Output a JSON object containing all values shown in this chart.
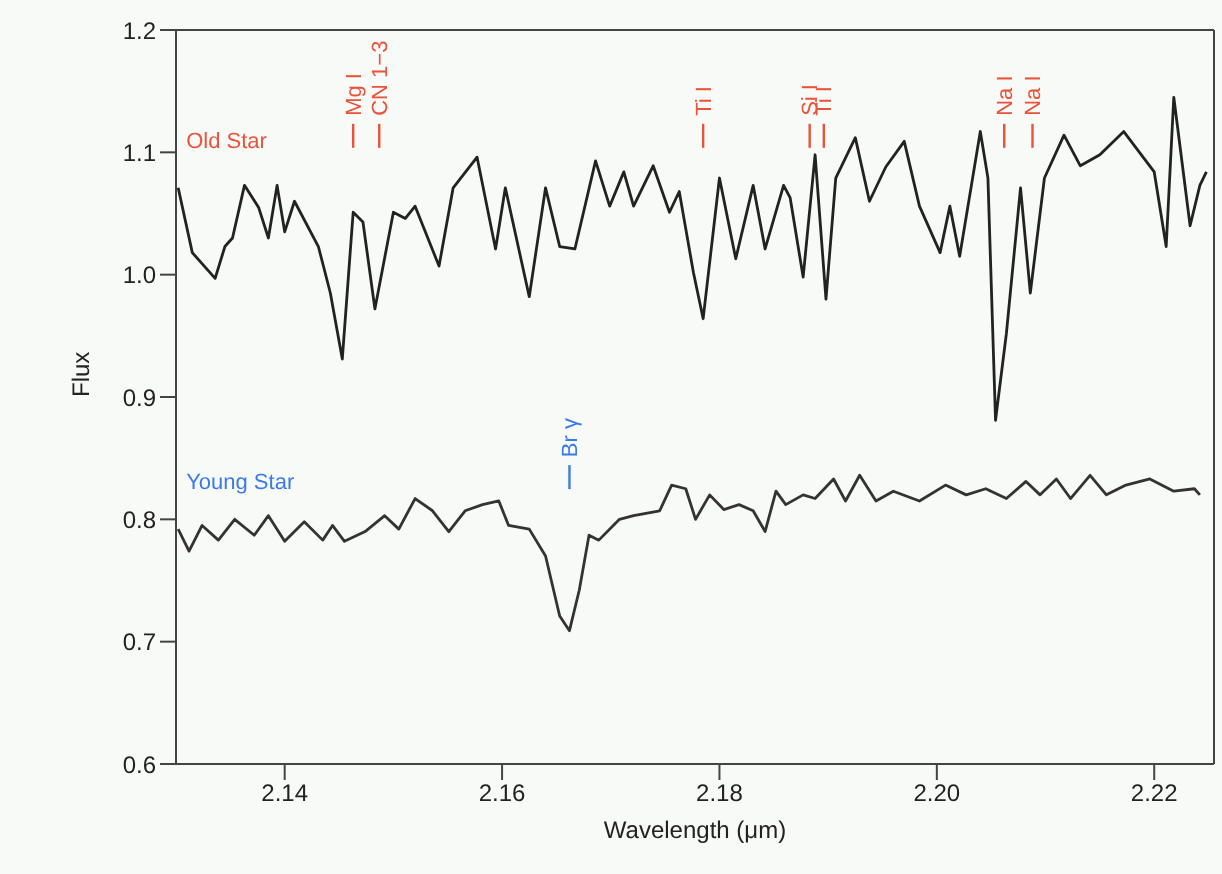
{
  "chart_data": {
    "type": "line",
    "xlabel": "Wavelength (μm)",
    "ylabel": "Flux",
    "xlim": [
      2.13,
      2.2255
    ],
    "ylim": [
      0.6,
      1.2
    ],
    "xticks": [
      2.14,
      2.16,
      2.18,
      {
        "value": 2.2,
        "label": "2.20"
      },
      2.22
    ],
    "yticks": [
      0.6,
      0.7,
      0.8,
      0.9,
      {
        "value": 1.0,
        "label": "1.0"
      },
      1.1,
      1.2
    ],
    "grid": false,
    "legend": false,
    "marker": "none",
    "line_style": "solid",
    "series": [
      {
        "color": "#222222",
        "x": [
          2.1302,
          2.1315,
          2.1336,
          2.1345,
          2.1352,
          2.1363,
          2.1376,
          2.1385,
          2.1393,
          2.14,
          2.1409,
          2.1431,
          2.1442,
          2.1453,
          2.1463,
          2.1472,
          2.1483,
          2.15,
          2.1511,
          2.152,
          2.1542,
          2.1555,
          2.1577,
          2.1594,
          2.1603,
          2.1625,
          2.164,
          2.1653,
          2.1667,
          2.1686,
          2.1699,
          2.1712,
          2.1721,
          2.1739,
          2.1754,
          2.1763,
          2.1776,
          2.1785,
          2.18,
          2.1815,
          2.1831,
          2.1842,
          2.1859,
          2.1865,
          2.1877,
          2.1888,
          2.1898,
          2.1907,
          2.1925,
          2.1938,
          2.1953,
          2.197,
          2.1984,
          2.2003,
          2.2012,
          2.2021,
          2.204,
          2.2047,
          2.2054,
          2.2064,
          2.2077,
          2.2086,
          2.2099,
          2.2117,
          2.2132,
          2.215,
          2.2172,
          2.22,
          2.2211,
          2.2218,
          2.2233,
          2.2242,
          2.2248
        ],
        "values": [
          1.071,
          1.018,
          0.997,
          1.023,
          1.03,
          1.073,
          1.055,
          1.03,
          1.073,
          1.035,
          1.06,
          1.023,
          0.985,
          0.931,
          1.051,
          1.043,
          0.972,
          1.051,
          1.046,
          1.056,
          1.007,
          1.071,
          1.096,
          1.021,
          1.071,
          0.982,
          1.071,
          1.023,
          1.021,
          1.093,
          1.056,
          1.084,
          1.056,
          1.089,
          1.051,
          1.068,
          1.002,
          0.964,
          1.079,
          1.013,
          1.073,
          1.021,
          1.073,
          1.063,
          0.998,
          1.098,
          0.98,
          1.079,
          1.112,
          1.06,
          1.088,
          1.109,
          1.056,
          1.018,
          1.056,
          1.015,
          1.117,
          1.079,
          0.881,
          0.952,
          1.071,
          0.985,
          1.079,
          1.114,
          1.089,
          1.098,
          1.117,
          1.084,
          1.023,
          1.145,
          1.04,
          1.073,
          1.084
        ]
      },
      {
        "color": "#333333",
        "x": [
          2.1302,
          2.1312,
          2.1324,
          2.1339,
          2.1354,
          2.1372,
          2.1385,
          2.14,
          2.1418,
          2.1435,
          2.1444,
          2.1455,
          2.1474,
          2.1492,
          2.1505,
          2.152,
          2.1536,
          2.1551,
          2.1566,
          2.1582,
          2.1597,
          2.1606,
          2.1625,
          2.164,
          2.1653,
          2.1662,
          2.1671,
          2.168,
          2.1689,
          2.1708,
          2.1721,
          2.1745,
          2.1756,
          2.1769,
          2.1778,
          2.1791,
          2.1804,
          2.1818,
          2.1831,
          2.1842,
          2.1852,
          2.1861,
          2.1877,
          2.1888,
          2.1905,
          2.1916,
          2.1929,
          2.1944,
          2.196,
          2.1984,
          2.2008,
          2.2027,
          2.2045,
          2.2064,
          2.2082,
          2.2095,
          2.211,
          2.2123,
          2.2141,
          2.2156,
          2.2174,
          2.2196,
          2.2218,
          2.2237,
          2.2242
        ],
        "values": [
          0.792,
          0.774,
          0.795,
          0.783,
          0.8,
          0.787,
          0.803,
          0.782,
          0.798,
          0.783,
          0.795,
          0.782,
          0.79,
          0.803,
          0.792,
          0.817,
          0.807,
          0.79,
          0.807,
          0.812,
          0.815,
          0.795,
          0.792,
          0.77,
          0.721,
          0.709,
          0.742,
          0.787,
          0.783,
          0.8,
          0.803,
          0.807,
          0.828,
          0.825,
          0.8,
          0.82,
          0.808,
          0.812,
          0.807,
          0.79,
          0.823,
          0.812,
          0.82,
          0.817,
          0.833,
          0.815,
          0.836,
          0.815,
          0.823,
          0.815,
          0.828,
          0.82,
          0.825,
          0.817,
          0.831,
          0.82,
          0.833,
          0.817,
          0.836,
          0.82,
          0.828,
          0.833,
          0.823,
          0.825,
          0.82
        ]
      }
    ],
    "annotations": [
      "Old Star",
      "Young Star"
    ],
    "ref_lines": [
      {
        "axis": "x",
        "value": 2.1463,
        "label": "Mg I",
        "color": "#e8533a"
      },
      {
        "axis": "x",
        "value": 2.1487,
        "label": "CN 1−3",
        "color": "#e8533a"
      },
      {
        "axis": "x",
        "value": 2.1785,
        "label": "Ti I",
        "color": "#e8533a"
      },
      {
        "axis": "x",
        "value": 2.1883,
        "label": "Si I",
        "color": "#e8533a"
      },
      {
        "axis": "x",
        "value": 2.1896,
        "label": "Ti I",
        "color": "#e8533a"
      },
      {
        "axis": "x",
        "value": 2.2062,
        "label": "Na I",
        "color": "#e8533a"
      },
      {
        "axis": "x",
        "value": 2.2088,
        "label": "Na I",
        "color": "#e8533a"
      },
      {
        "axis": "x",
        "value": 2.1662,
        "label": "Br γ",
        "color": "#3a7bea"
      }
    ]
  }
}
